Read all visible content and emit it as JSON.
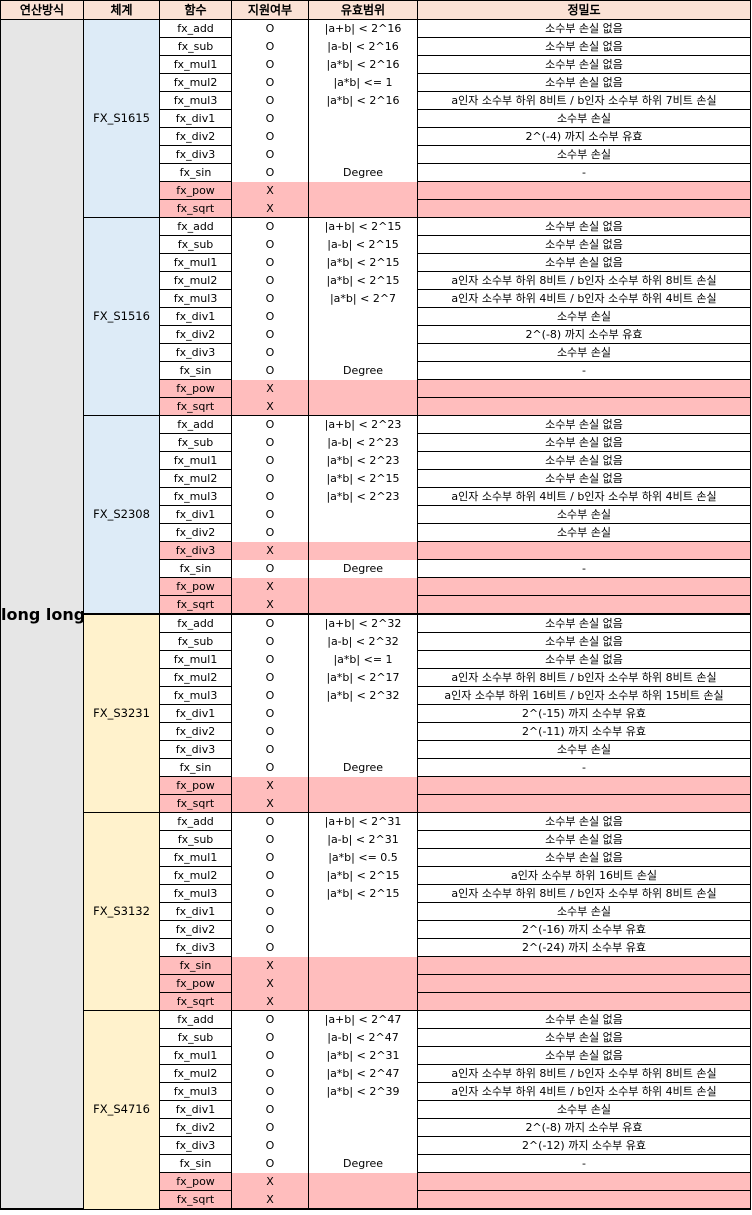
{
  "headers": [
    "연산방식",
    "체계",
    "함수",
    "지원여부",
    "유효범위",
    "정밀도"
  ],
  "mode": "long long",
  "groups": [
    {
      "name": "FX_S1615",
      "color": "blue",
      "rows": [
        [
          "fx_add",
          "O",
          "|a+b| < 2^16",
          "소수부 손실 없음"
        ],
        [
          "fx_sub",
          "O",
          "|a-b| < 2^16",
          "소수부 손실 없음"
        ],
        [
          "fx_mul1",
          "O",
          "|a*b| < 2^16",
          "소수부 손실 없음"
        ],
        [
          "fx_mul2",
          "O",
          "|a*b| <= 1",
          "소수부 손실 없음"
        ],
        [
          "fx_mul3",
          "O",
          "|a*b| < 2^16",
          "a인자 소수부 하위 8비트 / b인자 소수부 하위 7비트 손실"
        ],
        [
          "fx_div1",
          "O",
          "",
          "소수부 손실"
        ],
        [
          "fx_div2",
          "O",
          "",
          "2^(-4) 까지 소수부 유효"
        ],
        [
          "fx_div3",
          "O",
          "",
          "소수부 손실"
        ],
        [
          "fx_sin",
          "O",
          "Degree",
          "-"
        ],
        [
          "fx_pow",
          "X",
          "",
          ""
        ],
        [
          "fx_sqrt",
          "X",
          "",
          ""
        ]
      ]
    },
    {
      "name": "FX_S1516",
      "color": "blue",
      "rows": [
        [
          "fx_add",
          "O",
          "|a+b| < 2^15",
          "소수부 손실 없음"
        ],
        [
          "fx_sub",
          "O",
          "|a-b| < 2^15",
          "소수부 손실 없음"
        ],
        [
          "fx_mul1",
          "O",
          "|a*b| < 2^15",
          "소수부 손실 없음"
        ],
        [
          "fx_mul2",
          "O",
          "|a*b| < 2^15",
          "a인자 소수부 하위 8비트 / b인자 소수부 하위 8비트 손실"
        ],
        [
          "fx_mul3",
          "O",
          "|a*b| < 2^7",
          "a인자 소수부 하위 4비트 / b인자 소수부 하위 4비트 손실"
        ],
        [
          "fx_div1",
          "O",
          "",
          "소수부 손실"
        ],
        [
          "fx_div2",
          "O",
          "",
          "2^(-8) 까지 소수부 유효"
        ],
        [
          "fx_div3",
          "O",
          "",
          "소수부 손실"
        ],
        [
          "fx_sin",
          "O",
          "Degree",
          "-"
        ],
        [
          "fx_pow",
          "X",
          "",
          ""
        ],
        [
          "fx_sqrt",
          "X",
          "",
          ""
        ]
      ]
    },
    {
      "name": "FX_S2308",
      "color": "blue",
      "rows": [
        [
          "fx_add",
          "O",
          "|a+b| < 2^23",
          "소수부 손실 없음"
        ],
        [
          "fx_sub",
          "O",
          "|a-b| < 2^23",
          "소수부 손실 없음"
        ],
        [
          "fx_mul1",
          "O",
          "|a*b| < 2^23",
          "소수부 손실 없음"
        ],
        [
          "fx_mul2",
          "O",
          "|a*b| < 2^15",
          "소수부 손실 없음"
        ],
        [
          "fx_mul3",
          "O",
          "|a*b| < 2^23",
          "a인자 소수부 하위 4비트 / b인자 소수부 하위 4비트 손실"
        ],
        [
          "fx_div1",
          "O",
          "",
          "소수부 손실"
        ],
        [
          "fx_div2",
          "O",
          "",
          "소수부 손실"
        ],
        [
          "fx_div3",
          "X",
          "",
          ""
        ],
        [
          "fx_sin",
          "O",
          "Degree",
          "-"
        ],
        [
          "fx_pow",
          "X",
          "",
          ""
        ],
        [
          "fx_sqrt",
          "X",
          "",
          ""
        ]
      ]
    },
    {
      "name": "FX_S3231",
      "color": "yellow",
      "rows": [
        [
          "fx_add",
          "O",
          "|a+b| < 2^32",
          "소수부 손실 없음"
        ],
        [
          "fx_sub",
          "O",
          "|a-b| < 2^32",
          "소수부 손실 없음"
        ],
        [
          "fx_mul1",
          "O",
          "|a*b| <= 1",
          "소수부 손실 없음"
        ],
        [
          "fx_mul2",
          "O",
          "|a*b| < 2^17",
          "a인자 소수부 하위 8비트 / b인자 소수부 하위 8비트 손실"
        ],
        [
          "fx_mul3",
          "O",
          "|a*b| < 2^32",
          "a인자 소수부 하위 16비트 / b인자 소수부 하위 15비트 손실"
        ],
        [
          "fx_div1",
          "O",
          "",
          "2^(-15) 까지 소수부 유효"
        ],
        [
          "fx_div2",
          "O",
          "",
          "2^(-11) 까지 소수부 유효"
        ],
        [
          "fx_div3",
          "O",
          "",
          "소수부 손실"
        ],
        [
          "fx_sin",
          "O",
          "Degree",
          "-"
        ],
        [
          "fx_pow",
          "X",
          "",
          ""
        ],
        [
          "fx_sqrt",
          "X",
          "",
          ""
        ]
      ]
    },
    {
      "name": "FX_S3132",
      "color": "yellow",
      "rows": [
        [
          "fx_add",
          "O",
          "|a+b| < 2^31",
          "소수부 손실 없음"
        ],
        [
          "fx_sub",
          "O",
          "|a-b| < 2^31",
          "소수부 손실 없음"
        ],
        [
          "fx_mul1",
          "O",
          "|a*b| <= 0.5",
          "소수부 손실 없음"
        ],
        [
          "fx_mul2",
          "O",
          "|a*b| < 2^15",
          "a인자 소수부 하위 16비트 손실"
        ],
        [
          "fx_mul3",
          "O",
          "|a*b| < 2^15",
          "a인자 소수부 하위 8비트 / b인자 소수부 하위 8비트 손실"
        ],
        [
          "fx_div1",
          "O",
          "",
          "소수부 손실"
        ],
        [
          "fx_div2",
          "O",
          "",
          "2^(-16) 까지 소수부 유효"
        ],
        [
          "fx_div3",
          "O",
          "",
          "2^(-24) 까지 소수부 유효"
        ],
        [
          "fx_sin",
          "X",
          "",
          ""
        ],
        [
          "fx_pow",
          "X",
          "",
          ""
        ],
        [
          "fx_sqrt",
          "X",
          "",
          ""
        ]
      ]
    },
    {
      "name": "FX_S4716",
      "color": "yellow",
      "rows": [
        [
          "fx_add",
          "O",
          "|a+b| < 2^47",
          "소수부 손실 없음"
        ],
        [
          "fx_sub",
          "O",
          "|a-b| < 2^47",
          "소수부 손실 없음"
        ],
        [
          "fx_mul1",
          "O",
          "|a*b| < 2^31",
          "소수부 손실 없음"
        ],
        [
          "fx_mul2",
          "O",
          "|a*b| < 2^47",
          "a인자 소수부 하위 8비트 / b인자 소수부 하위 8비트 손실"
        ],
        [
          "fx_mul3",
          "O",
          "|a*b| < 2^39",
          "a인자 소수부 하위 4비트 / b인자 소수부 하위 4비트 손실"
        ],
        [
          "fx_div1",
          "O",
          "",
          "소수부 손실"
        ],
        [
          "fx_div2",
          "O",
          "",
          "2^(-8) 까지 소수부 유효"
        ],
        [
          "fx_div3",
          "O",
          "",
          "2^(-12) 까지 소수부 유효"
        ],
        [
          "fx_sin",
          "O",
          "Degree",
          "-"
        ],
        [
          "fx_pow",
          "X",
          "",
          ""
        ],
        [
          "fx_sqrt",
          "X",
          "",
          ""
        ]
      ]
    }
  ]
}
